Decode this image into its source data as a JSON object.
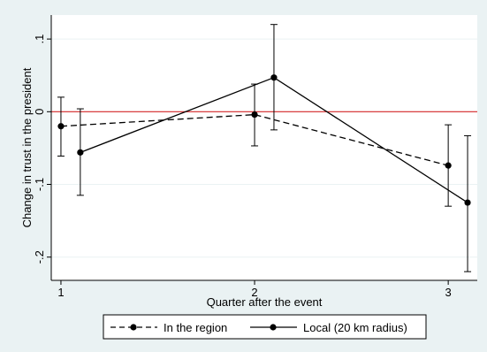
{
  "chart_data": {
    "type": "line",
    "title": "",
    "xlabel": "Quarter after the event",
    "ylabel": "Change in trust in the president",
    "xlim": [
      0.95,
      3.15
    ],
    "ylim": [
      -0.232,
      0.133
    ],
    "xticks": [
      1,
      2,
      3
    ],
    "xtick_labels": [
      "1",
      "2",
      "3"
    ],
    "yticks": [
      -0.2,
      -0.1,
      0,
      0.1
    ],
    "ytick_labels": [
      "-.2",
      "-.1",
      "0",
      ".1"
    ],
    "grid": "horizontal",
    "reference_line": {
      "y": 0,
      "color": "#d62728"
    },
    "legend_position": "bottom",
    "series": [
      {
        "name": "In the region",
        "style": "dashed",
        "color": "#000000",
        "x": [
          1.0,
          2.0,
          3.0
        ],
        "y": [
          -0.02,
          -0.004,
          -0.074
        ],
        "ci_low": [
          -0.061,
          -0.047,
          -0.13
        ],
        "ci_high": [
          0.02,
          0.038,
          -0.018
        ]
      },
      {
        "name": "Local (20 km radius)",
        "style": "solid",
        "color": "#000000",
        "x": [
          1.1,
          2.1,
          3.1
        ],
        "y": [
          -0.056,
          0.047,
          -0.125
        ],
        "ci_low": [
          -0.115,
          -0.025,
          -0.22
        ],
        "ci_high": [
          0.004,
          0.12,
          -0.033
        ]
      }
    ]
  }
}
